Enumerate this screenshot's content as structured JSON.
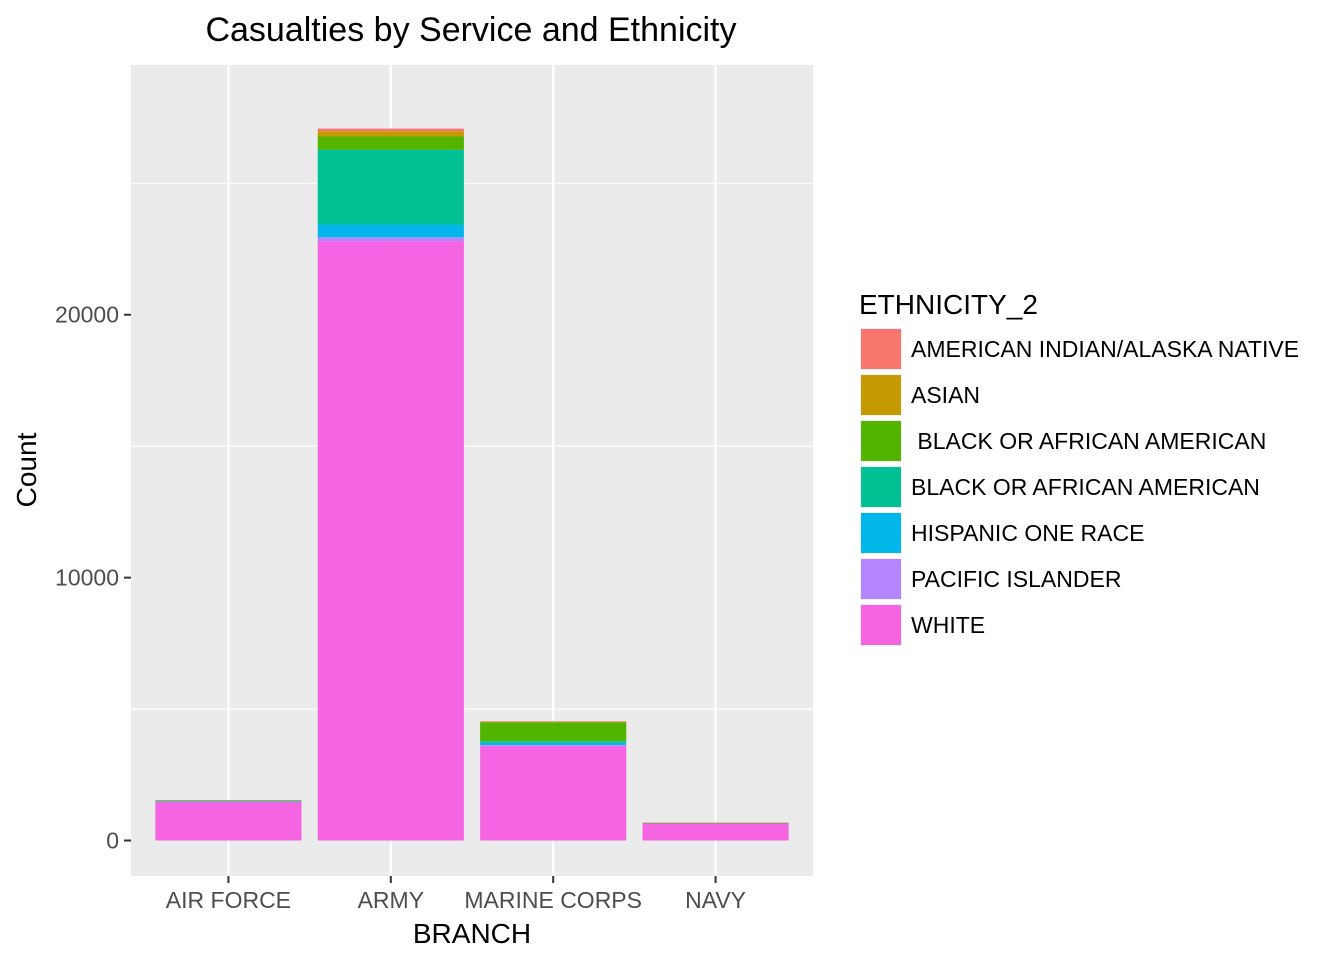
{
  "chart_data": {
    "type": "bar",
    "stacked": true,
    "title": "Casualties by Service and Ethnicity",
    "xlabel": "BRANCH",
    "ylabel": "Count",
    "categories": [
      "AIR FORCE",
      "ARMY",
      "MARINE CORPS",
      "NAVY"
    ],
    "y_ticks": [
      0,
      10000,
      20000
    ],
    "ylim": [
      -1350,
      29500
    ],
    "grid": true,
    "legend": {
      "title": "ETHNICITY_2",
      "position": "right"
    },
    "series": [
      {
        "name": "WHITE",
        "color": "#F564E3",
        "values": [
          1450,
          22800,
          3600,
          650
        ]
      },
      {
        "name": "PACIFIC ISLANDER",
        "color": "#B385FF",
        "values": [
          20,
          150,
          30,
          5
        ]
      },
      {
        "name": "HISPANIC ONE RACE",
        "color": "#00B6EB",
        "values": [
          20,
          480,
          90,
          5
        ]
      },
      {
        "name": "BLACK OR AFRICAN AMERICAN",
        "color": "#00C094",
        "values": [
          20,
          2850,
          60,
          5
        ]
      },
      {
        "name": " BLACK OR AFRICAN AMERICAN",
        "color": "#53B400",
        "values": [
          10,
          500,
          720,
          5
        ]
      },
      {
        "name": "ASIAN",
        "color": "#C49A00",
        "values": [
          10,
          200,
          20,
          5
        ]
      },
      {
        "name": "AMERICAN INDIAN/ALASKA NATIVE",
        "color": "#F8766D",
        "values": [
          5,
          100,
          20,
          2
        ]
      }
    ],
    "legend_order": [
      "AMERICAN INDIAN/ALASKA NATIVE",
      "ASIAN",
      " BLACK OR AFRICAN AMERICAN",
      "BLACK OR AFRICAN AMERICAN",
      "HISPANIC ONE RACE",
      "PACIFIC ISLANDER",
      "WHITE"
    ],
    "colors": {
      "panel_background": "#EBEBEB",
      "grid_major": "#FFFFFF",
      "grid_minor": "#F4F4F4",
      "tick_text": "#4D4D4D"
    }
  }
}
